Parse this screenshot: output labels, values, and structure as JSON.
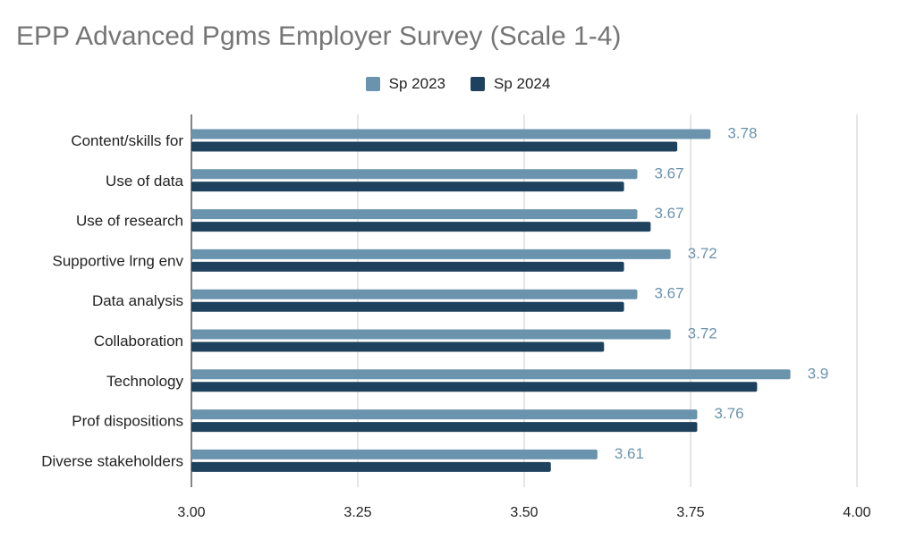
{
  "chart_data": {
    "type": "bar",
    "orientation": "horizontal",
    "title": "EPP Advanced Pgms Employer Survey (Scale 1-4)",
    "xlabel": "",
    "ylabel": "",
    "xlim": [
      3.0,
      4.0
    ],
    "x_ticks": [
      "3.00",
      "3.25",
      "3.50",
      "3.75",
      "4.00"
    ],
    "x_tick_values": [
      3.0,
      3.25,
      3.5,
      3.75,
      4.0
    ],
    "grid": "vertical",
    "legend_position": "top",
    "categories": [
      "Content/skills for",
      "Use of data",
      "Use of research",
      "Supportive lrng env",
      "Data analysis",
      "Collaboration",
      "Technology",
      "Prof dispositions",
      "Diverse stakeholders"
    ],
    "series": [
      {
        "name": "Sp 2023",
        "color": "#6a93ad",
        "values": [
          3.78,
          3.67,
          3.67,
          3.72,
          3.67,
          3.72,
          3.9,
          3.76,
          3.61
        ],
        "data_labels": [
          "3.78",
          "3.67",
          "3.67",
          "3.72",
          "3.67",
          "3.72",
          "3.9",
          "3.76",
          "3.61"
        ]
      },
      {
        "name": "Sp 2024",
        "color": "#1e415e",
        "values": [
          3.73,
          3.65,
          3.69,
          3.65,
          3.65,
          3.62,
          3.85,
          3.76,
          3.54
        ]
      }
    ]
  }
}
